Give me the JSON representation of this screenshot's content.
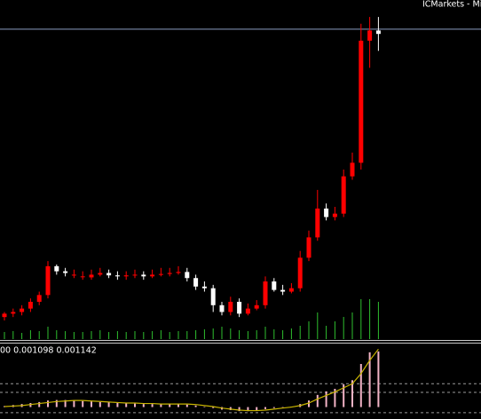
{
  "chart_data": {
    "type": "candlestick",
    "broker_label": "ICMarkets - Mi",
    "open": [
      6.5,
      7.5,
      8,
      9,
      11,
      13,
      21.5,
      20,
      19,
      18.5,
      18.2,
      19,
      19.5,
      18.8,
      18.5,
      18.8,
      19,
      18.5,
      19,
      19.2,
      19.5,
      19.8,
      18,
      15.5,
      15,
      10,
      8,
      11,
      7.5,
      9,
      10,
      17,
      14.5,
      14,
      15,
      24,
      30,
      38.5,
      36,
      37,
      48,
      52,
      88,
      91
    ],
    "high": [
      8,
      9,
      10,
      12,
      14,
      23,
      22,
      21,
      20.5,
      20,
      20.5,
      21,
      20.5,
      20,
      20,
      20.5,
      20,
      20.5,
      21,
      21,
      21.5,
      21,
      19,
      17,
      16,
      11,
      12.5,
      12,
      10.5,
      11.5,
      18.5,
      18,
      16,
      16.5,
      26,
      32,
      44,
      40,
      39,
      50,
      55,
      93,
      95,
      95
    ],
    "low": [
      5.5,
      6.5,
      7,
      8,
      10,
      12,
      19,
      18.5,
      18,
      17.5,
      17.5,
      18.5,
      18,
      17.5,
      17.5,
      18,
      17.5,
      18,
      18.5,
      18.5,
      19,
      17,
      14.5,
      14,
      8,
      7,
      7,
      6.5,
      7,
      8.5,
      9,
      14,
      13,
      13.5,
      14,
      23,
      29,
      35,
      35,
      36,
      47,
      50,
      80,
      85
    ],
    "close": [
      7.5,
      8,
      9,
      11,
      13,
      21.5,
      20,
      19.5,
      19,
      18.5,
      19,
      19.5,
      18.8,
      18.5,
      18.8,
      19,
      18.5,
      19,
      19.2,
      19.5,
      19.8,
      18,
      15.5,
      15,
      10,
      8,
      11,
      7.5,
      9,
      10,
      17,
      14.5,
      14,
      15,
      24,
      30,
      38.5,
      36,
      37,
      48,
      52,
      88,
      91,
      90
    ],
    "up_color": "#ff0000",
    "down_color": "#ffffff",
    "ylim": [
      0,
      100
    ],
    "price_line": 91.4,
    "price_line_color": "#8a9cc0",
    "volume": {
      "values": [
        8,
        9,
        7,
        10,
        9,
        14,
        10,
        9,
        8,
        8,
        9,
        10,
        8,
        9,
        8,
        9,
        8,
        9,
        10,
        8,
        9,
        9,
        10,
        11,
        12,
        14,
        12,
        10,
        9,
        10,
        14,
        11,
        10,
        12,
        15,
        20,
        30,
        15,
        20,
        25,
        30,
        45,
        45,
        42
      ],
      "color": "#2fbf2f",
      "ylim": [
        0,
        100
      ]
    },
    "macd": {
      "label": "00 0.001098 0.001142",
      "histogram": [
        2e-05,
        4e-05,
        6e-05,
        8e-05,
        0.0001,
        0.00013,
        0.00014,
        0.00014,
        0.00013,
        0.00012,
        0.00011,
        0.0001,
        9e-05,
        8e-05,
        8e-05,
        7e-05,
        6e-05,
        6e-05,
        6e-05,
        6e-05,
        6e-05,
        5e-05,
        3e-05,
        1e-05,
        -2e-05,
        -5e-05,
        -6e-05,
        -8e-05,
        -8e-05,
        -7e-05,
        -4e-05,
        -2e-05,
        -1e-05,
        1e-05,
        6e-05,
        0.00013,
        0.00024,
        0.00031,
        0.00036,
        0.00045,
        0.00053,
        0.00085,
        0.00108,
        0.001098
      ],
      "signal": [
        1e-05,
        2e-05,
        3e-05,
        5e-05,
        7e-05,
        9e-05,
        0.00011,
        0.00012,
        0.00013,
        0.00013,
        0.00012,
        0.00011,
        0.0001,
        9e-05,
        8e-05,
        8e-05,
        7e-05,
        7e-05,
        6e-05,
        6e-05,
        6e-05,
        6e-05,
        5e-05,
        3e-05,
        1e-05,
        -2e-05,
        -4e-05,
        -6e-05,
        -7e-05,
        -7e-05,
        -6e-05,
        -4e-05,
        -2e-05,
        0,
        3e-05,
        8e-05,
        0.00016,
        0.00023,
        0.0003,
        0.00038,
        0.00046,
        0.00066,
        0.00092,
        0.001142
      ],
      "histogram_color": "#f2b3c6",
      "signal_color": "#c8b400",
      "ylim": [
        -0.0002,
        0.0012
      ],
      "levels": [
        0.00046,
        0.00029,
        -0.00011
      ]
    }
  }
}
